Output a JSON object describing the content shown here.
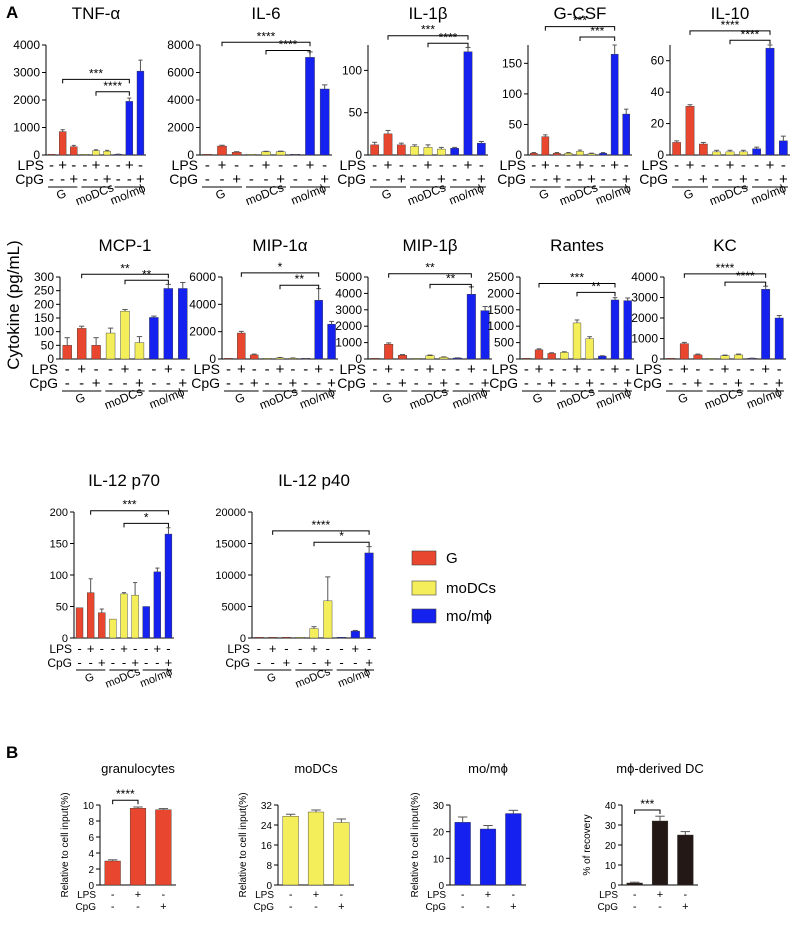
{
  "panel_labels": {
    "A": "A",
    "B": "B"
  },
  "y_axis_common_label": "Cytokine (pg/mL)",
  "row_labels": {
    "lps": "LPS",
    "cpg": "CpG"
  },
  "condition_signs": {
    "lps": [
      "-",
      "+",
      "-",
      "-",
      "+",
      "-",
      "-",
      "+",
      "-"
    ],
    "cpg": [
      "-",
      "-",
      "+",
      "-",
      "-",
      "+",
      "-",
      "-",
      "+"
    ]
  },
  "group_labels": [
    "G",
    "moDCs",
    "mo/mϕ"
  ],
  "legend": {
    "items": [
      {
        "label": "G",
        "color": "#e8462e"
      },
      {
        "label": "moDCs",
        "color": "#f3ee5a"
      },
      {
        "label": "mo/mϕ",
        "color": "#1521ef"
      }
    ]
  },
  "colors": {
    "G": "#e8462e",
    "moDCs": "#f3ee5a",
    "mo": "#1521ef",
    "dc": "#231815"
  },
  "chart_data": [
    {
      "type": "bar",
      "title": "TNF-α",
      "ylim": [
        0,
        4000
      ],
      "yticks": [
        "0",
        "1000",
        "2000",
        "3000",
        "4000"
      ],
      "values": [
        0,
        850,
        300,
        0,
        160,
        140,
        20,
        1950,
        3050
      ],
      "errors": [
        0,
        70,
        50,
        0,
        30,
        30,
        10,
        120,
        400
      ],
      "annotations": [
        {
          "from": 1,
          "to": 7,
          "y": 2750,
          "label": "***"
        },
        {
          "from": 4,
          "to": 7,
          "y": 2300,
          "label": "****"
        }
      ]
    },
    {
      "type": "bar",
      "title": "IL-6",
      "ylim": [
        0,
        8000
      ],
      "yticks": [
        "0",
        "2000",
        "4000",
        "6000",
        "8000"
      ],
      "values": [
        0,
        650,
        200,
        0,
        230,
        240,
        20,
        7100,
        4800
      ],
      "errors": [
        0,
        60,
        40,
        0,
        40,
        40,
        10,
        400,
        300
      ],
      "annotations": [
        {
          "from": 1,
          "to": 7,
          "y": 8200,
          "label": "****"
        },
        {
          "from": 4,
          "to": 7,
          "y": 7600,
          "label": "****"
        }
      ]
    },
    {
      "type": "bar",
      "title": "IL-1β",
      "ylim": [
        0,
        130
      ],
      "yticks": [
        "0",
        "50",
        "100"
      ],
      "values": [
        12,
        25,
        12,
        10,
        9,
        7,
        8,
        122,
        14
      ],
      "errors": [
        3,
        4,
        2,
        2,
        3,
        2,
        1,
        5,
        2
      ],
      "annotations": [
        {
          "from": 1,
          "to": 7,
          "y": 141,
          "label": "***"
        },
        {
          "from": 4,
          "to": 7,
          "y": 132,
          "label": "****"
        }
      ]
    },
    {
      "type": "bar",
      "title": "G-CSF",
      "ylim": [
        0,
        180
      ],
      "yticks": [
        "0",
        "50",
        "100",
        "150"
      ],
      "values": [
        3,
        30,
        3,
        3,
        6,
        2,
        3,
        165,
        67
      ],
      "errors": [
        1,
        3,
        1,
        1,
        2,
        1,
        1,
        15,
        8
      ],
      "annotations": [
        {
          "from": 1,
          "to": 7,
          "y": 210,
          "label": "***"
        },
        {
          "from": 4,
          "to": 7,
          "y": 193,
          "label": "***"
        }
      ]
    },
    {
      "type": "bar",
      "title": "IL-10",
      "ylim": [
        0,
        70
      ],
      "yticks": [
        "0",
        "20",
        "40",
        "60"
      ],
      "values": [
        8,
        31,
        7,
        2,
        2,
        2,
        4,
        68,
        9
      ],
      "errors": [
        1,
        1,
        1,
        1,
        1,
        1,
        1,
        2,
        3
      ],
      "annotations": [
        {
          "from": 1,
          "to": 7,
          "y": 79,
          "label": "****"
        },
        {
          "from": 4,
          "to": 7,
          "y": 73,
          "label": "****"
        }
      ]
    },
    {
      "type": "bar",
      "title": "MCP-1",
      "ylim": [
        0,
        300
      ],
      "yticks": [
        "0",
        "50",
        "100",
        "150",
        "200",
        "250",
        "300"
      ],
      "values": [
        50,
        112,
        50,
        95,
        175,
        60,
        152,
        258,
        258
      ],
      "errors": [
        28,
        8,
        28,
        18,
        6,
        22,
        5,
        15,
        22
      ],
      "annotations": [
        {
          "from": 1,
          "to": 7,
          "y": 310,
          "label": "**"
        },
        {
          "from": 4,
          "to": 7,
          "y": 288,
          "label": "**"
        }
      ]
    },
    {
      "type": "bar",
      "title": "MIP-1α",
      "ylim": [
        0,
        6000
      ],
      "yticks": [
        "0",
        "2000",
        "4000",
        "6000"
      ],
      "values": [
        0,
        1900,
        300,
        0,
        80,
        60,
        20,
        4300,
        2550
      ],
      "errors": [
        0,
        120,
        60,
        0,
        30,
        20,
        10,
        850,
        200
      ],
      "annotations": [
        {
          "from": 1,
          "to": 7,
          "y": 6300,
          "label": "*"
        },
        {
          "from": 4,
          "to": 7,
          "y": 5400,
          "label": "**"
        }
      ]
    },
    {
      "type": "bar",
      "title": "MIP-1β",
      "ylim": [
        0,
        5000
      ],
      "yticks": [
        "0",
        "1000",
        "2000",
        "3000",
        "4000",
        "5000"
      ],
      "values": [
        0,
        900,
        230,
        0,
        200,
        100,
        60,
        3950,
        2950
      ],
      "errors": [
        0,
        80,
        40,
        0,
        40,
        30,
        10,
        450,
        250
      ],
      "annotations": [
        {
          "from": 1,
          "to": 7,
          "y": 5200,
          "label": "**"
        },
        {
          "from": 4,
          "to": 7,
          "y": 4550,
          "label": "**"
        }
      ]
    },
    {
      "type": "bar",
      "title": "Rantes",
      "ylim": [
        0,
        2500
      ],
      "yticks": [
        "0",
        "500",
        "1000",
        "1500",
        "2000",
        "2500"
      ],
      "values": [
        0,
        280,
        170,
        200,
        1100,
        620,
        90,
        1800,
        1780
      ],
      "errors": [
        0,
        30,
        20,
        20,
        90,
        60,
        10,
        70,
        80
      ],
      "annotations": [
        {
          "from": 1,
          "to": 7,
          "y": 2300,
          "label": "***"
        },
        {
          "from": 4,
          "to": 7,
          "y": 2030,
          "label": "**"
        }
      ]
    },
    {
      "type": "bar",
      "title": "KC",
      "ylim": [
        0,
        4000
      ],
      "yticks": [
        "0",
        "1000",
        "2000",
        "3000",
        "4000"
      ],
      "values": [
        0,
        750,
        200,
        0,
        160,
        200,
        30,
        3400,
        2000
      ],
      "errors": [
        0,
        60,
        40,
        0,
        30,
        40,
        10,
        150,
        120
      ],
      "annotations": [
        {
          "from": 1,
          "to": 7,
          "y": 4150,
          "label": "****"
        },
        {
          "from": 4,
          "to": 7,
          "y": 3750,
          "label": "****"
        }
      ]
    },
    {
      "type": "bar",
      "title": "IL-12 p70",
      "ylim": [
        0,
        200
      ],
      "yticks": [
        "0",
        "50",
        "100",
        "150",
        "200"
      ],
      "values": [
        48,
        72,
        40,
        30,
        70,
        68,
        50,
        105,
        165
      ],
      "errors": [
        0,
        22,
        6,
        0,
        2,
        20,
        0,
        6,
        10
      ],
      "annotations": [
        {
          "from": 1,
          "to": 8,
          "y": 202,
          "label": "***"
        },
        {
          "from": 4,
          "to": 8,
          "y": 182,
          "label": "*"
        }
      ]
    },
    {
      "type": "bar",
      "title": "IL-12 p40",
      "ylim": [
        0,
        20000
      ],
      "yticks": [
        "0",
        "5000",
        "10000",
        "15000",
        "20000"
      ],
      "values": [
        0,
        0,
        0,
        0,
        1500,
        5900,
        0,
        1100,
        13500
      ],
      "errors": [
        0,
        0,
        0,
        0,
        300,
        3800,
        0,
        100,
        1000
      ],
      "annotations": [
        {
          "from": 1,
          "to": 8,
          "y": 17000,
          "label": "****"
        },
        {
          "from": 4,
          "to": 8,
          "y": 15200,
          "label": "*"
        }
      ]
    },
    {
      "type": "bar",
      "title": "granulocytes",
      "ylabel": "Relative to cell input(%)",
      "ylim": [
        0,
        10
      ],
      "yticks": [
        "0",
        "2",
        "4",
        "6",
        "8",
        "10"
      ],
      "values": [
        3.0,
        9.6,
        9.4
      ],
      "errors": [
        0.15,
        0.15,
        0.15
      ],
      "lps": [
        "-",
        "+",
        "-"
      ],
      "cpg": [
        "-",
        "-",
        "+"
      ],
      "color": "#e8462e",
      "annotations": [
        {
          "from": 0,
          "to": 1,
          "y": 10.6,
          "label": "****"
        }
      ]
    },
    {
      "type": "bar",
      "title": "moDCs",
      "ylabel": "Relative to cell input(%)",
      "ylim": [
        0,
        32
      ],
      "yticks": [
        "0",
        "8",
        "16",
        "24",
        "32"
      ],
      "values": [
        27.5,
        29.2,
        25.0
      ],
      "errors": [
        0.8,
        0.8,
        1.4
      ],
      "lps": [
        "-",
        "+",
        "-"
      ],
      "cpg": [
        "-",
        "-",
        "+"
      ],
      "color": "#f3ee5a",
      "annotations": []
    },
    {
      "type": "bar",
      "title": "mo/mϕ",
      "ylabel": "Relative to cell input(%)",
      "ylim": [
        0,
        30
      ],
      "yticks": [
        "0",
        "10",
        "20",
        "30"
      ],
      "values": [
        23.5,
        21.0,
        26.8
      ],
      "errors": [
        2.0,
        1.3,
        1.2
      ],
      "lps": [
        "-",
        "+",
        "-"
      ],
      "cpg": [
        "-",
        "-",
        "+"
      ],
      "color": "#1521ef",
      "annotations": []
    },
    {
      "type": "bar",
      "title": "mϕ-derived DC",
      "ylabel": "% of recovery",
      "ylim": [
        0,
        40
      ],
      "yticks": [
        "0",
        "10",
        "20",
        "30",
        "40"
      ],
      "values": [
        1.0,
        32.0,
        25.0
      ],
      "errors": [
        0.4,
        2.4,
        1.7
      ],
      "lps": [
        "-",
        "+",
        "-"
      ],
      "cpg": [
        "-",
        "-",
        "+"
      ],
      "color": "#231815",
      "annotations": [
        {
          "from": 0,
          "to": 1,
          "y": 37.5,
          "label": "***"
        }
      ]
    }
  ]
}
